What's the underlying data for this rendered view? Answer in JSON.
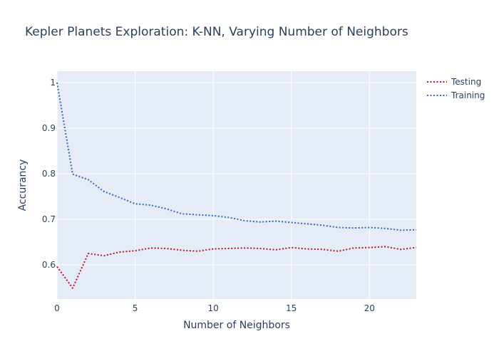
{
  "chart_data": {
    "type": "line",
    "title": "Kepler Planets Exploration: K-NN, Varying Number of Neighbors",
    "xlabel": "Number of Neighbors",
    "ylabel": "Accurancy",
    "xlim": [
      0,
      23
    ],
    "ylim": [
      0.525,
      1.025
    ],
    "xticks": [
      0,
      5,
      10,
      15,
      20
    ],
    "yticks": [
      0.6,
      0.7,
      0.8,
      0.9,
      1
    ],
    "grid": true,
    "legend_position": "top-right",
    "x": [
      0,
      1,
      2,
      3,
      4,
      5,
      6,
      7,
      8,
      9,
      10,
      11,
      12,
      13,
      14,
      15,
      16,
      17,
      18,
      19,
      20,
      21,
      22,
      23
    ],
    "series": [
      {
        "name": "Testing",
        "color": "#b2182b",
        "dash": "dotted",
        "values": [
          0.596,
          0.549,
          0.625,
          0.62,
          0.628,
          0.631,
          0.637,
          0.636,
          0.632,
          0.63,
          0.635,
          0.636,
          0.637,
          0.636,
          0.633,
          0.638,
          0.635,
          0.634,
          0.63,
          0.637,
          0.638,
          0.64,
          0.634,
          0.638
        ]
      },
      {
        "name": "Training",
        "color": "#3366cc",
        "dash": "dotted",
        "values": [
          1.0,
          0.799,
          0.787,
          0.761,
          0.748,
          0.734,
          0.731,
          0.723,
          0.712,
          0.71,
          0.708,
          0.704,
          0.697,
          0.694,
          0.696,
          0.693,
          0.69,
          0.687,
          0.682,
          0.681,
          0.682,
          0.68,
          0.676,
          0.677
        ]
      }
    ]
  }
}
